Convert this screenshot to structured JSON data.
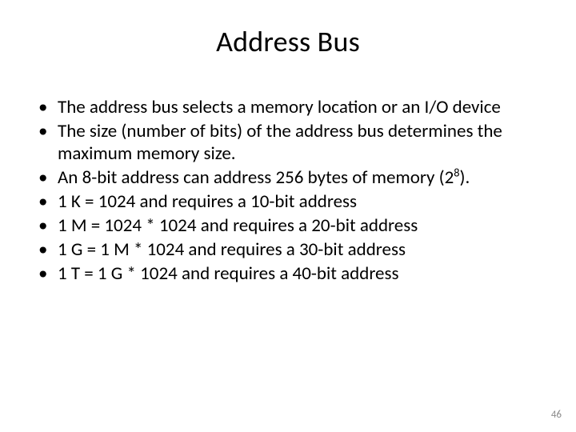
{
  "slide": {
    "title": "Address Bus",
    "title_fontsize": 36,
    "body_fontsize": 23,
    "text_color": "#000000",
    "background_color": "#ffffff",
    "page_number_color": "#8a8a8a",
    "bullets": [
      "The address bus selects a memory location or an I/O device",
      "The size (number of bits) of the address bus determines the maximum memory size.",
      "An 8-bit address can address 256 bytes of memory (2",
      "1 K = 1024 and requires a 10-bit address",
      "1 M = 1024 * 1024 and requires a 20-bit address",
      "1 G = 1 M * 1024 and requires a 30-bit address",
      "1 T = 1 G * 1024 and requires a 40-bit address"
    ],
    "bullet2_sup": "8",
    "bullet2_tail": ").",
    "page_number": "46"
  }
}
